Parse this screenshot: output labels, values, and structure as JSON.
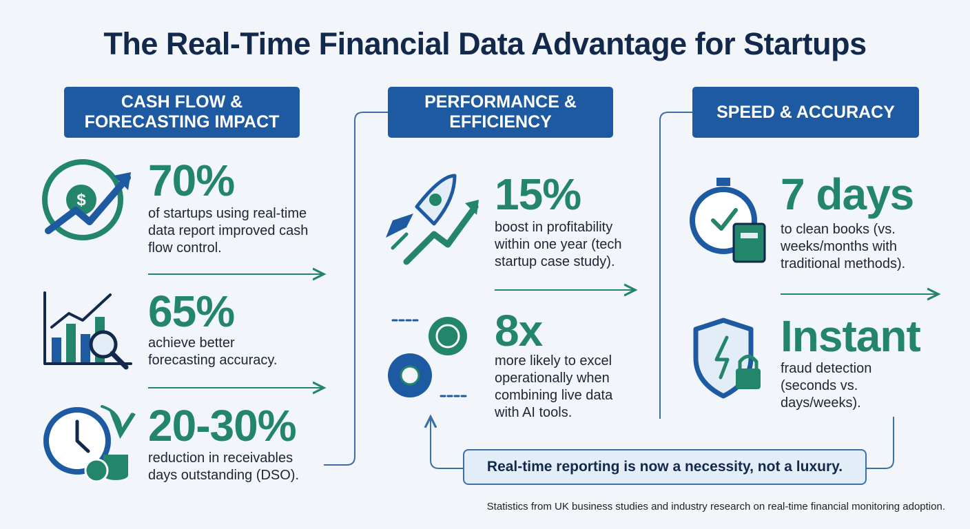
{
  "title": "The Real-Time Financial Data Advantage for Startups",
  "columns": [
    {
      "header": "CASH FLOW & FORECASTING IMPACT",
      "stats": [
        {
          "value": "70%",
          "text": "of startups using real-time data report improved cash flow control."
        },
        {
          "value": "65%",
          "text": "achieve better forecasting accuracy."
        },
        {
          "value": "20-30%",
          "text": "reduction in receivables days outstanding (DSO)."
        }
      ]
    },
    {
      "header": "PERFORMANCE & EFFICIENCY",
      "stats": [
        {
          "value": "15%",
          "text": "boost in profitability within one year (tech startup case study)."
        },
        {
          "value": "8x",
          "text": "more likely to excel operationally when combining live data with AI tools."
        }
      ]
    },
    {
      "header": "SPEED & ACCURACY",
      "stats": [
        {
          "value": "7 days",
          "text": "to clean books (vs. weeks/months with traditional methods)."
        },
        {
          "value": "Instant",
          "text": "fraud detection (seconds vs. days/weeks)."
        }
      ]
    }
  ],
  "callout": "Real-time reporting is now a necessity, not a luxury.",
  "footnote": "Statistics from UK business studies and industry research on real-time financial monitoring adoption."
}
